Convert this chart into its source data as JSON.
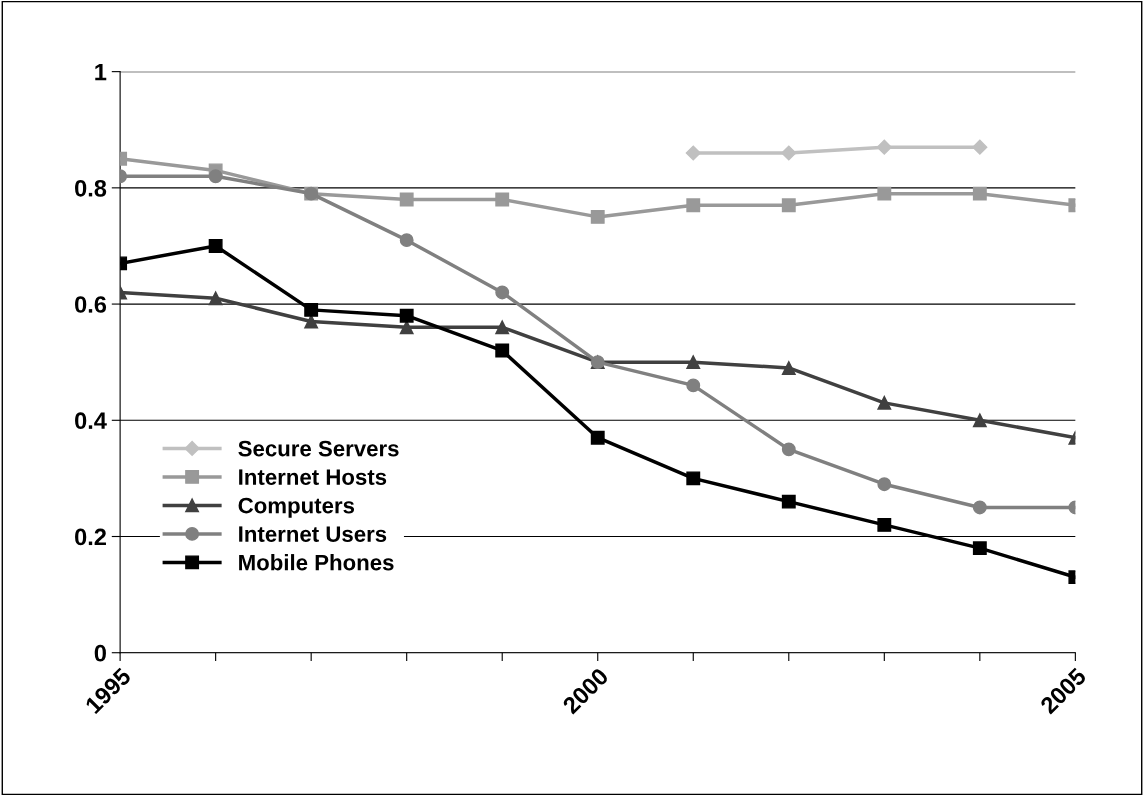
{
  "chart_data": {
    "type": "line",
    "x": [
      1995,
      1996,
      1997,
      1998,
      1999,
      2000,
      2001,
      2002,
      2003,
      2004,
      2005
    ],
    "series": [
      {
        "name": "Secure Servers",
        "color": "#c0c0c0",
        "marker": "diamond",
        "values": [
          null,
          null,
          null,
          null,
          null,
          null,
          0.86,
          0.86,
          0.87,
          0.87,
          null
        ]
      },
      {
        "name": "Internet Hosts",
        "color": "#999999",
        "marker": "square",
        "values": [
          0.85,
          0.83,
          0.79,
          0.78,
          0.78,
          0.75,
          0.77,
          0.77,
          0.79,
          0.79,
          0.77
        ]
      },
      {
        "name": "Computers",
        "color": "#404040",
        "marker": "triangle",
        "values": [
          0.62,
          0.61,
          0.57,
          0.56,
          0.56,
          0.5,
          0.5,
          0.49,
          0.43,
          0.4,
          0.37
        ]
      },
      {
        "name": "Internet Users",
        "color": "#808080",
        "marker": "circle",
        "values": [
          0.82,
          0.82,
          0.79,
          0.71,
          0.62,
          0.5,
          0.46,
          0.35,
          0.29,
          0.25,
          0.25
        ]
      },
      {
        "name": "Mobile Phones",
        "color": "#000000",
        "marker": "square",
        "values": [
          0.67,
          0.7,
          0.59,
          0.58,
          0.52,
          0.37,
          0.3,
          0.26,
          0.22,
          0.18,
          0.13
        ]
      }
    ],
    "xlim": [
      1995,
      2005
    ],
    "xticks": [
      1995,
      {
        "value": 1996,
        "label": null
      },
      {
        "value": 1997,
        "label": null
      },
      {
        "value": 1998,
        "label": null
      },
      {
        "value": 1999,
        "label": null
      },
      2000,
      {
        "value": 2001,
        "label": null
      },
      {
        "value": 2002,
        "label": null
      },
      {
        "value": 2003,
        "label": null
      },
      {
        "value": 2004,
        "label": null
      },
      2005
    ],
    "ylim": [
      0,
      1
    ],
    "yticks": [
      0,
      0.2,
      0.4,
      0.6,
      0.8,
      1
    ],
    "grid": "y",
    "legend": "center left",
    "line_style": "solid"
  }
}
